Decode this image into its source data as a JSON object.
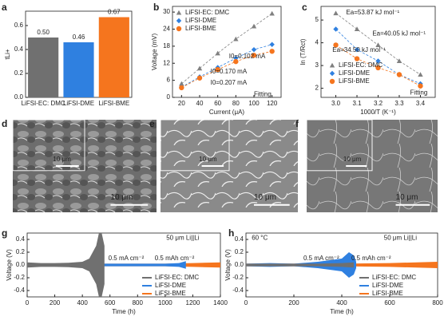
{
  "chart_data": [
    {
      "panel": "a",
      "type": "bar",
      "y_label": "tLi+",
      "categories": [
        "LiFSI-EC: DMC",
        "LiFSI-DME",
        "LiFSI-BME"
      ],
      "values": [
        0.5,
        0.46,
        0.67
      ],
      "value_labels": [
        "0.50",
        "0.46",
        "0.67"
      ],
      "colors": [
        "#707070",
        "#2f80e0",
        "#f5751e"
      ],
      "ylim": [
        0,
        0.72
      ],
      "yticks": [
        {
          "value": 0,
          "label": "0.0"
        },
        0.2,
        0.4,
        0.6
      ]
    },
    {
      "panel": "b",
      "type": "scatter",
      "x_label": "Current (μA)",
      "y_label": "Voltage (mV)",
      "x": [
        20,
        40,
        60,
        80,
        100,
        120
      ],
      "series": [
        {
          "name": "LiFSI-EC: DMC",
          "color": "#808080",
          "marker": "triangle",
          "values": [
            4.8,
            10.2,
            15.5,
            20.5,
            25,
            29.5
          ]
        },
        {
          "name": "LiFSI-DME",
          "color": "#2f80e0",
          "marker": "diamond",
          "values": [
            3.6,
            7.2,
            10.5,
            13.8,
            16.8,
            18.6
          ]
        },
        {
          "name": "LiFSI-BME",
          "color": "#f5751e",
          "marker": "circle",
          "values": [
            3.4,
            6.8,
            9.8,
            12.6,
            14.8,
            16.2
          ]
        }
      ],
      "annotations": [
        "I0=0.102 mA",
        "I0=0.170 mA",
        "I0=0.207 mA",
        "Fitting"
      ],
      "xlim": [
        10,
        130
      ],
      "xticks": [
        20,
        40,
        60,
        80,
        100,
        120
      ],
      "ylim": [
        0,
        32
      ],
      "yticks": [
        0,
        6,
        12,
        18,
        24,
        30
      ]
    },
    {
      "panel": "c",
      "type": "scatter",
      "x_label": "1000/T (K⁻¹)",
      "y_label": "ln (T/Rct)",
      "x": [
        3.0,
        3.1,
        3.2,
        3.3,
        3.4
      ],
      "series": [
        {
          "name": "LiFSI-EC: DMC",
          "color": "#808080",
          "marker": "triangle",
          "values": [
            5.3,
            4.6,
            3.9,
            3.2,
            2.6
          ]
        },
        {
          "name": "LiFSI-DME",
          "color": "#2f80e0",
          "marker": "diamond",
          "values": [
            4.6,
            3.7,
            3.2,
            2.6,
            2.2
          ]
        },
        {
          "name": "LiFSI-BME",
          "color": "#f5751e",
          "marker": "circle",
          "values": [
            3.9,
            3.3,
            2.9,
            2.6,
            2.1
          ]
        }
      ],
      "annotations": [
        "Ea=53.87 kJ mol⁻¹",
        "Ea=40.05 kJ mol⁻¹",
        "Ea=34.50 kJ mol⁻¹",
        "Fitting"
      ],
      "xlim": [
        2.93,
        3.47
      ],
      "xticks": [
        {
          "value": 3.0,
          "label": "3.0"
        },
        3.1,
        3.2,
        3.3,
        3.4
      ],
      "ylim": [
        1.6,
        5.6
      ],
      "yticks": [
        2,
        3,
        4,
        5
      ]
    },
    {
      "panel": "g",
      "type": "band",
      "x_label": "Time (h)",
      "y_label": "Voltage (V)",
      "series": [
        {
          "name": "LiFSI-EC: DMC",
          "color": "#707070",
          "x": [
            0,
            100,
            200,
            300,
            400,
            450,
            500,
            520,
            540,
            560
          ],
          "values": [
            0.04,
            0.03,
            0.03,
            0.035,
            0.05,
            0.1,
            0.3,
            0.5,
            0.5,
            0.3
          ]
        },
        {
          "name": "LiFSI-DME",
          "color": "#2f80e0",
          "x": [
            0,
            200,
            400,
            600,
            800,
            1000,
            1100,
            1150
          ],
          "values": [
            0.02,
            0.02,
            0.02,
            0.02,
            0.02,
            0.02,
            0.03,
            0.06
          ]
        },
        {
          "name": "LiFSI-BME",
          "color": "#f5751e",
          "x": [
            0,
            200,
            400,
            600,
            800,
            1000,
            1200,
            1400
          ],
          "values": [
            0.03,
            0.02,
            0.02,
            0.02,
            0.02,
            0.02,
            0.03,
            0.04
          ]
        }
      ],
      "annotations": [
        "50 μm Li||Li",
        "0.5 mA cm⁻²",
        "0.5 mAh cm⁻²"
      ],
      "xlim": [
        0,
        1400
      ],
      "xticks": [
        0,
        200,
        400,
        600,
        800,
        1000,
        1200,
        1400
      ],
      "ylim": [
        -0.5,
        0.5
      ],
      "yticks": [
        -0.4,
        -0.2,
        {
          "value": 0,
          "label": "0.0"
        },
        0.2,
        0.4
      ]
    },
    {
      "panel": "h",
      "type": "band",
      "x_label": "Time (h)",
      "y_label": "Voltage (V)",
      "series": [
        {
          "name": "LiFSI-EC: DMC",
          "color": "#707070",
          "x": [
            0,
            100,
            200,
            300,
            400,
            450
          ],
          "values": [
            0.02,
            0.02,
            0.02,
            0.02,
            0.03,
            0.04
          ]
        },
        {
          "name": "LiFSI-DME",
          "color": "#2f80e0",
          "x": [
            0,
            100,
            200,
            300,
            400,
            430,
            450,
            460
          ],
          "values": [
            0.02,
            0.03,
            0.02,
            0.05,
            0.1,
            0.2,
            0.15,
            0.05
          ]
        },
        {
          "name": "LiFSI-BME",
          "color": "#f5751e",
          "x": [
            0,
            200,
            400,
            600,
            800
          ],
          "values": [
            0.02,
            0.02,
            0.02,
            0.03,
            0.05
          ]
        }
      ],
      "annotations": [
        "60 °C",
        "50 μm Li||Li",
        "0.5 mA cm⁻²",
        "0.5 mAh cm⁻²"
      ],
      "xlim": [
        0,
        800
      ],
      "xticks": [
        0,
        200,
        400,
        600,
        800
      ],
      "ylim": [
        -0.5,
        0.5
      ],
      "yticks": [
        -0.4,
        -0.2,
        {
          "value": 0,
          "label": "0.0"
        },
        0.2,
        0.4
      ]
    }
  ],
  "sem_panels": [
    {
      "panel": "d",
      "scale_bars": [
        "10 μm",
        "10 μm"
      ]
    },
    {
      "panel": "e",
      "scale_bars": [
        "10 μm",
        "10 μm"
      ]
    },
    {
      "panel": "f",
      "scale_bars": [
        "10 μm",
        "10 μm"
      ]
    }
  ]
}
